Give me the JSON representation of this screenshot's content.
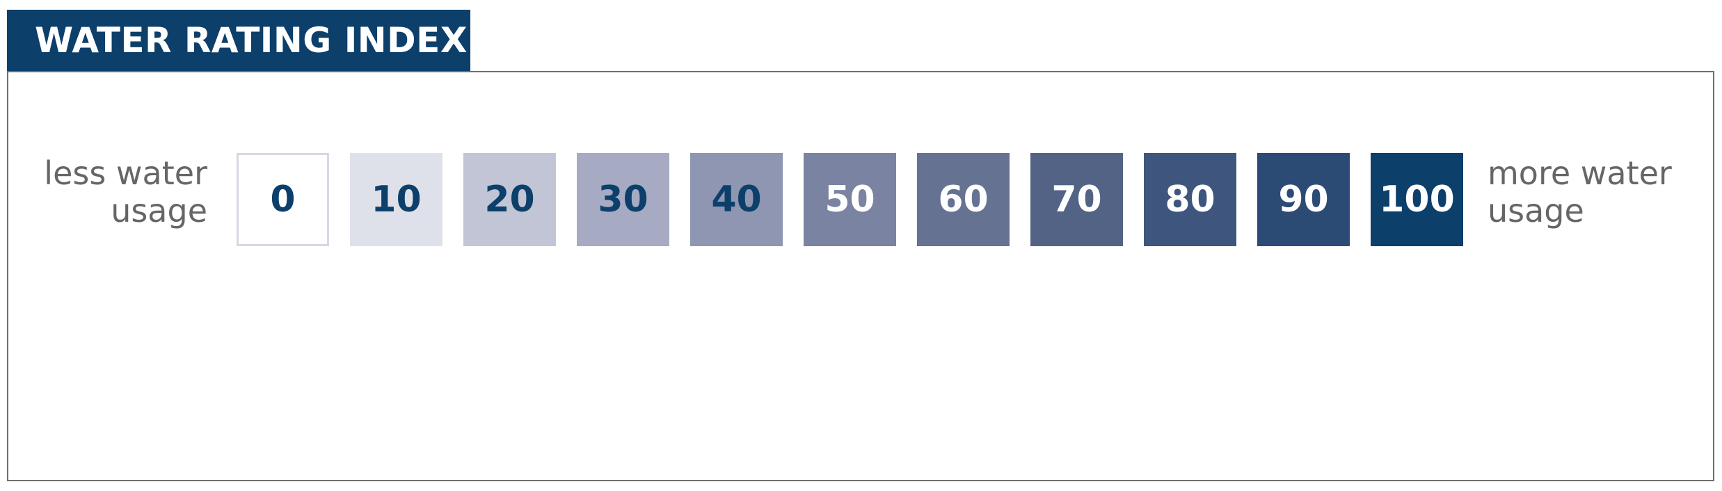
{
  "header": {
    "title": "WATER RATING INDEX"
  },
  "labels": {
    "left_line1": "less water",
    "left_line2": "usage",
    "right_line1": "more water",
    "right_line2": "usage"
  },
  "scale": {
    "cells": [
      {
        "value": "0",
        "fill": "#ffffff",
        "text_color": "#0d3f6b",
        "border": "#d5d8e4"
      },
      {
        "value": "10",
        "fill": "#dfe1ea",
        "text_color": "#0d3f6b"
      },
      {
        "value": "20",
        "fill": "#c1c5d6",
        "text_color": "#0d3f6b"
      },
      {
        "value": "30",
        "fill": "#a6abc3",
        "text_color": "#0d3f6b"
      },
      {
        "value": "40",
        "fill": "#8f96b1",
        "text_color": "#0d3f6b"
      },
      {
        "value": "50",
        "fill": "#7a83a1",
        "text_color": "#ffffff"
      },
      {
        "value": "60",
        "fill": "#667292",
        "text_color": "#ffffff"
      },
      {
        "value": "70",
        "fill": "#526386",
        "text_color": "#ffffff"
      },
      {
        "value": "80",
        "fill": "#3e567d",
        "text_color": "#ffffff"
      },
      {
        "value": "90",
        "fill": "#2b4b74",
        "text_color": "#ffffff"
      },
      {
        "value": "100",
        "fill": "#0d3f6b",
        "text_color": "#ffffff"
      }
    ]
  },
  "colors": {
    "brand": "#0d3f6b",
    "panel_border": "#6f6f6f",
    "label_text": "#666666"
  }
}
